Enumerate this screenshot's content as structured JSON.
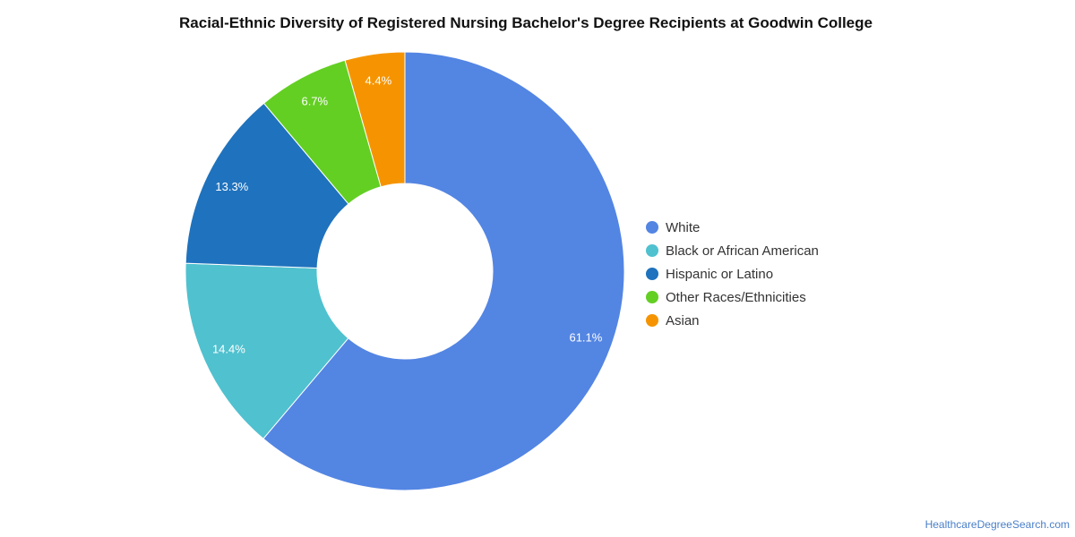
{
  "chart_data": {
    "type": "pie",
    "variant": "donut",
    "title": "Racial-Ethnic Diversity of Registered Nursing Bachelor's Degree Recipients at Goodwin College",
    "slices": [
      {
        "name": "White",
        "value": 61.1,
        "label": "61.1%",
        "color": "#5385e3"
      },
      {
        "name": "Black or African American",
        "value": 14.4,
        "label": "14.4%",
        "color": "#50c1cf"
      },
      {
        "name": "Hispanic or Latino",
        "value": 13.3,
        "label": "13.3%",
        "color": "#1f72bd"
      },
      {
        "name": "Other Races/Ethnicities",
        "value": 6.7,
        "label": "6.7%",
        "color": "#63cf23"
      },
      {
        "name": "Asian",
        "value": 4.4,
        "label": "4.4%",
        "color": "#f59400"
      }
    ],
    "legend_position": "right"
  },
  "source": "HealthcareDegreeSearch.com"
}
